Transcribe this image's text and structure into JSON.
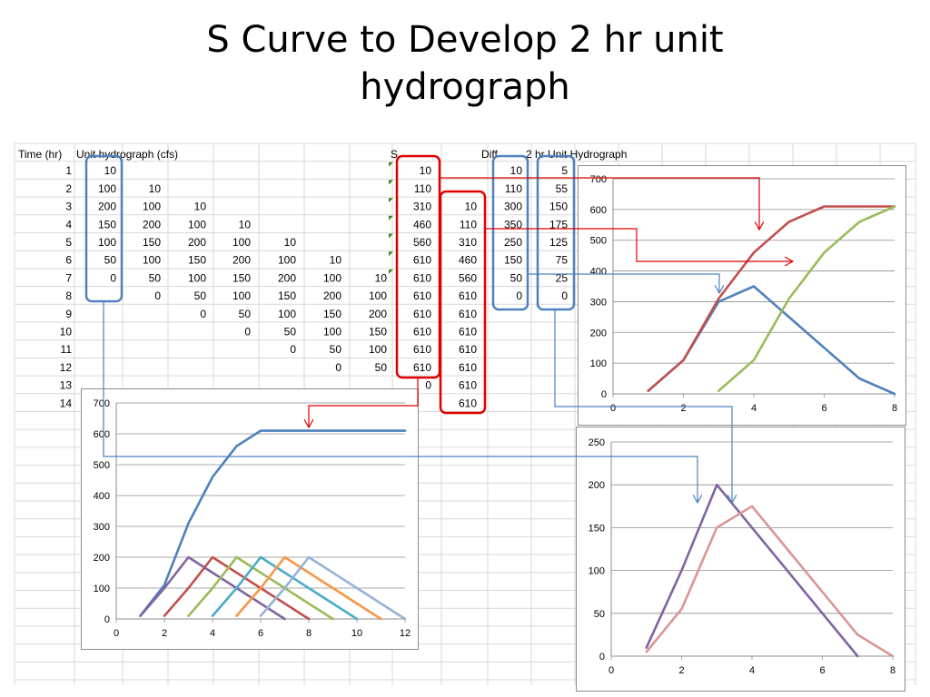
{
  "slide": {
    "title_line1": "S Curve to Develop 2 hr unit",
    "title_line2": "hydrograph"
  },
  "table": {
    "headers": {
      "time": "Time (hr)",
      "uh": "Unit hydrograph (cfs)",
      "s": "S",
      "diff": "Diff",
      "uh2": "2 hr Unit Hydrograph"
    },
    "rows": [
      {
        "t": "1",
        "uh": "10",
        "lag1": "",
        "lag2": "",
        "lag3": "",
        "lag4": "",
        "lag5": "",
        "lag6": "",
        "s": "10",
        "s_lag": "",
        "diff": "10",
        "uh2": "5"
      },
      {
        "t": "2",
        "uh": "100",
        "lag1": "10",
        "lag2": "",
        "lag3": "",
        "lag4": "",
        "lag5": "",
        "lag6": "",
        "s": "110",
        "s_lag": "",
        "diff": "110",
        "uh2": "55"
      },
      {
        "t": "3",
        "uh": "200",
        "lag1": "100",
        "lag2": "10",
        "lag3": "",
        "lag4": "",
        "lag5": "",
        "lag6": "",
        "s": "310",
        "s_lag": "10",
        "diff": "300",
        "uh2": "150"
      },
      {
        "t": "4",
        "uh": "150",
        "lag1": "200",
        "lag2": "100",
        "lag3": "10",
        "lag4": "",
        "lag5": "",
        "lag6": "",
        "s": "460",
        "s_lag": "110",
        "diff": "350",
        "uh2": "175"
      },
      {
        "t": "5",
        "uh": "100",
        "lag1": "150",
        "lag2": "200",
        "lag3": "100",
        "lag4": "10",
        "lag5": "",
        "lag6": "",
        "s": "560",
        "s_lag": "310",
        "diff": "250",
        "uh2": "125"
      },
      {
        "t": "6",
        "uh": "50",
        "lag1": "100",
        "lag2": "150",
        "lag3": "200",
        "lag4": "100",
        "lag5": "10",
        "lag6": "",
        "s": "610",
        "s_lag": "460",
        "diff": "150",
        "uh2": "75"
      },
      {
        "t": "7",
        "uh": "0",
        "lag1": "50",
        "lag2": "100",
        "lag3": "150",
        "lag4": "200",
        "lag5": "100",
        "lag6": "10",
        "s": "610",
        "s_lag": "560",
        "diff": "50",
        "uh2": "25"
      },
      {
        "t": "8",
        "uh": "",
        "lag1": "0",
        "lag2": "50",
        "lag3": "100",
        "lag4": "150",
        "lag5": "200",
        "lag6": "100",
        "s": "610",
        "s_lag": "610",
        "diff": "0",
        "uh2": "0"
      },
      {
        "t": "9",
        "uh": "",
        "lag1": "",
        "lag2": "0",
        "lag3": "50",
        "lag4": "100",
        "lag5": "150",
        "lag6": "200",
        "s": "610",
        "s_lag": "610",
        "diff": "",
        "uh2": ""
      },
      {
        "t": "10",
        "uh": "",
        "lag1": "",
        "lag2": "",
        "lag3": "0",
        "lag4": "50",
        "lag5": "100",
        "lag6": "150",
        "s": "610",
        "s_lag": "610",
        "diff": "",
        "uh2": ""
      },
      {
        "t": "11",
        "uh": "",
        "lag1": "",
        "lag2": "",
        "lag3": "",
        "lag4": "0",
        "lag5": "50",
        "lag6": "100",
        "s": "610",
        "s_lag": "610",
        "diff": "",
        "uh2": ""
      },
      {
        "t": "12",
        "uh": "",
        "lag1": "",
        "lag2": "",
        "lag3": "",
        "lag4": "",
        "lag5": "0",
        "lag6": "50",
        "s": "610",
        "s_lag": "610",
        "diff": "",
        "uh2": ""
      },
      {
        "t": "13",
        "uh": "",
        "lag1": "",
        "lag2": "",
        "lag3": "",
        "lag4": "",
        "lag5": "",
        "lag6": "",
        "s": "0",
        "s_lag": "610",
        "diff": "",
        "uh2": ""
      },
      {
        "t": "14",
        "uh": "",
        "lag1": "",
        "lag2": "",
        "lag3": "",
        "lag4": "",
        "lag5": "",
        "lag6": "",
        "s": "",
        "s_lag": "610",
        "diff": "",
        "uh2": ""
      }
    ]
  },
  "colors": {
    "grid": "#d9d9d9",
    "blue_box": "#4f81bd",
    "red_box": "#e00000",
    "arrow_red": "#e00000",
    "arrow_blue": "#4f81bd",
    "green_marker": "#2e8b2e"
  },
  "chart_data": [
    {
      "id": "s-curve-chart",
      "type": "line",
      "xlim": [
        0,
        8
      ],
      "ylim": [
        0,
        700
      ],
      "xticks": [
        "0",
        "2",
        "4",
        "6",
        "8"
      ],
      "yticks": [
        "0",
        "100",
        "200",
        "300",
        "400",
        "500",
        "600",
        "700"
      ],
      "series": [
        {
          "color": "#4f81bd",
          "x": [
            1,
            2,
            3,
            4,
            5,
            6,
            7,
            8
          ],
          "y": [
            10,
            110,
            300,
            350,
            250,
            150,
            50,
            0
          ]
        },
        {
          "color": "#c0504d",
          "x": [
            1,
            2,
            3,
            4,
            5,
            6,
            7,
            8
          ],
          "y": [
            10,
            110,
            310,
            460,
            560,
            610,
            610,
            610
          ]
        },
        {
          "color": "#9bbb59",
          "x": [
            3,
            4,
            5,
            6,
            7,
            8
          ],
          "y": [
            10,
            110,
            310,
            460,
            560,
            610
          ]
        }
      ]
    },
    {
      "id": "lagged-uh-chart",
      "type": "line",
      "xlim": [
        0,
        12
      ],
      "ylim": [
        0,
        700
      ],
      "xticks": [
        "0",
        "2",
        "4",
        "6",
        "8",
        "10",
        "12"
      ],
      "yticks": [
        "0",
        "100",
        "200",
        "300",
        "400",
        "500",
        "600",
        "700"
      ],
      "series": [
        {
          "color": "#4f81bd",
          "x": [
            1,
            2,
            3,
            4,
            5,
            6,
            7,
            8,
            9,
            10,
            11,
            12
          ],
          "y": [
            10,
            110,
            310,
            460,
            560,
            610,
            610,
            610,
            610,
            610,
            610,
            610
          ]
        },
        {
          "color": "#8064a2",
          "x": [
            1,
            2,
            3,
            4,
            5,
            6,
            7
          ],
          "y": [
            10,
            100,
            200,
            150,
            100,
            50,
            0
          ]
        },
        {
          "color": "#c0504d",
          "x": [
            2,
            3,
            4,
            5,
            6,
            7,
            8
          ],
          "y": [
            10,
            100,
            200,
            150,
            100,
            50,
            0
          ]
        },
        {
          "color": "#9bbb59",
          "x": [
            3,
            4,
            5,
            6,
            7,
            8,
            9
          ],
          "y": [
            10,
            100,
            200,
            150,
            100,
            50,
            0
          ]
        },
        {
          "color": "#4bacc6",
          "x": [
            4,
            5,
            6,
            7,
            8,
            9,
            10
          ],
          "y": [
            10,
            100,
            200,
            150,
            100,
            50,
            0
          ]
        },
        {
          "color": "#f79646",
          "x": [
            5,
            6,
            7,
            8,
            9,
            10,
            11
          ],
          "y": [
            10,
            100,
            200,
            150,
            100,
            50,
            0
          ]
        },
        {
          "color": "#95b3d7",
          "x": [
            6,
            7,
            8,
            9,
            10,
            11,
            12
          ],
          "y": [
            10,
            100,
            200,
            150,
            100,
            50,
            0
          ]
        }
      ]
    },
    {
      "id": "uh-compare-chart",
      "type": "line",
      "xlim": [
        0,
        8
      ],
      "ylim": [
        0,
        250
      ],
      "xticks": [
        "0",
        "2",
        "4",
        "6",
        "8"
      ],
      "yticks": [
        "0",
        "50",
        "100",
        "150",
        "200",
        "250"
      ],
      "series": [
        {
          "color": "#8064a2",
          "x": [
            1,
            2,
            3,
            4,
            5,
            6,
            7
          ],
          "y": [
            10,
            100,
            200,
            150,
            100,
            50,
            0
          ]
        },
        {
          "color": "#d99694",
          "x": [
            1,
            2,
            3,
            4,
            5,
            6,
            7,
            8
          ],
          "y": [
            5,
            55,
            150,
            175,
            125,
            75,
            25,
            0
          ]
        }
      ]
    }
  ]
}
